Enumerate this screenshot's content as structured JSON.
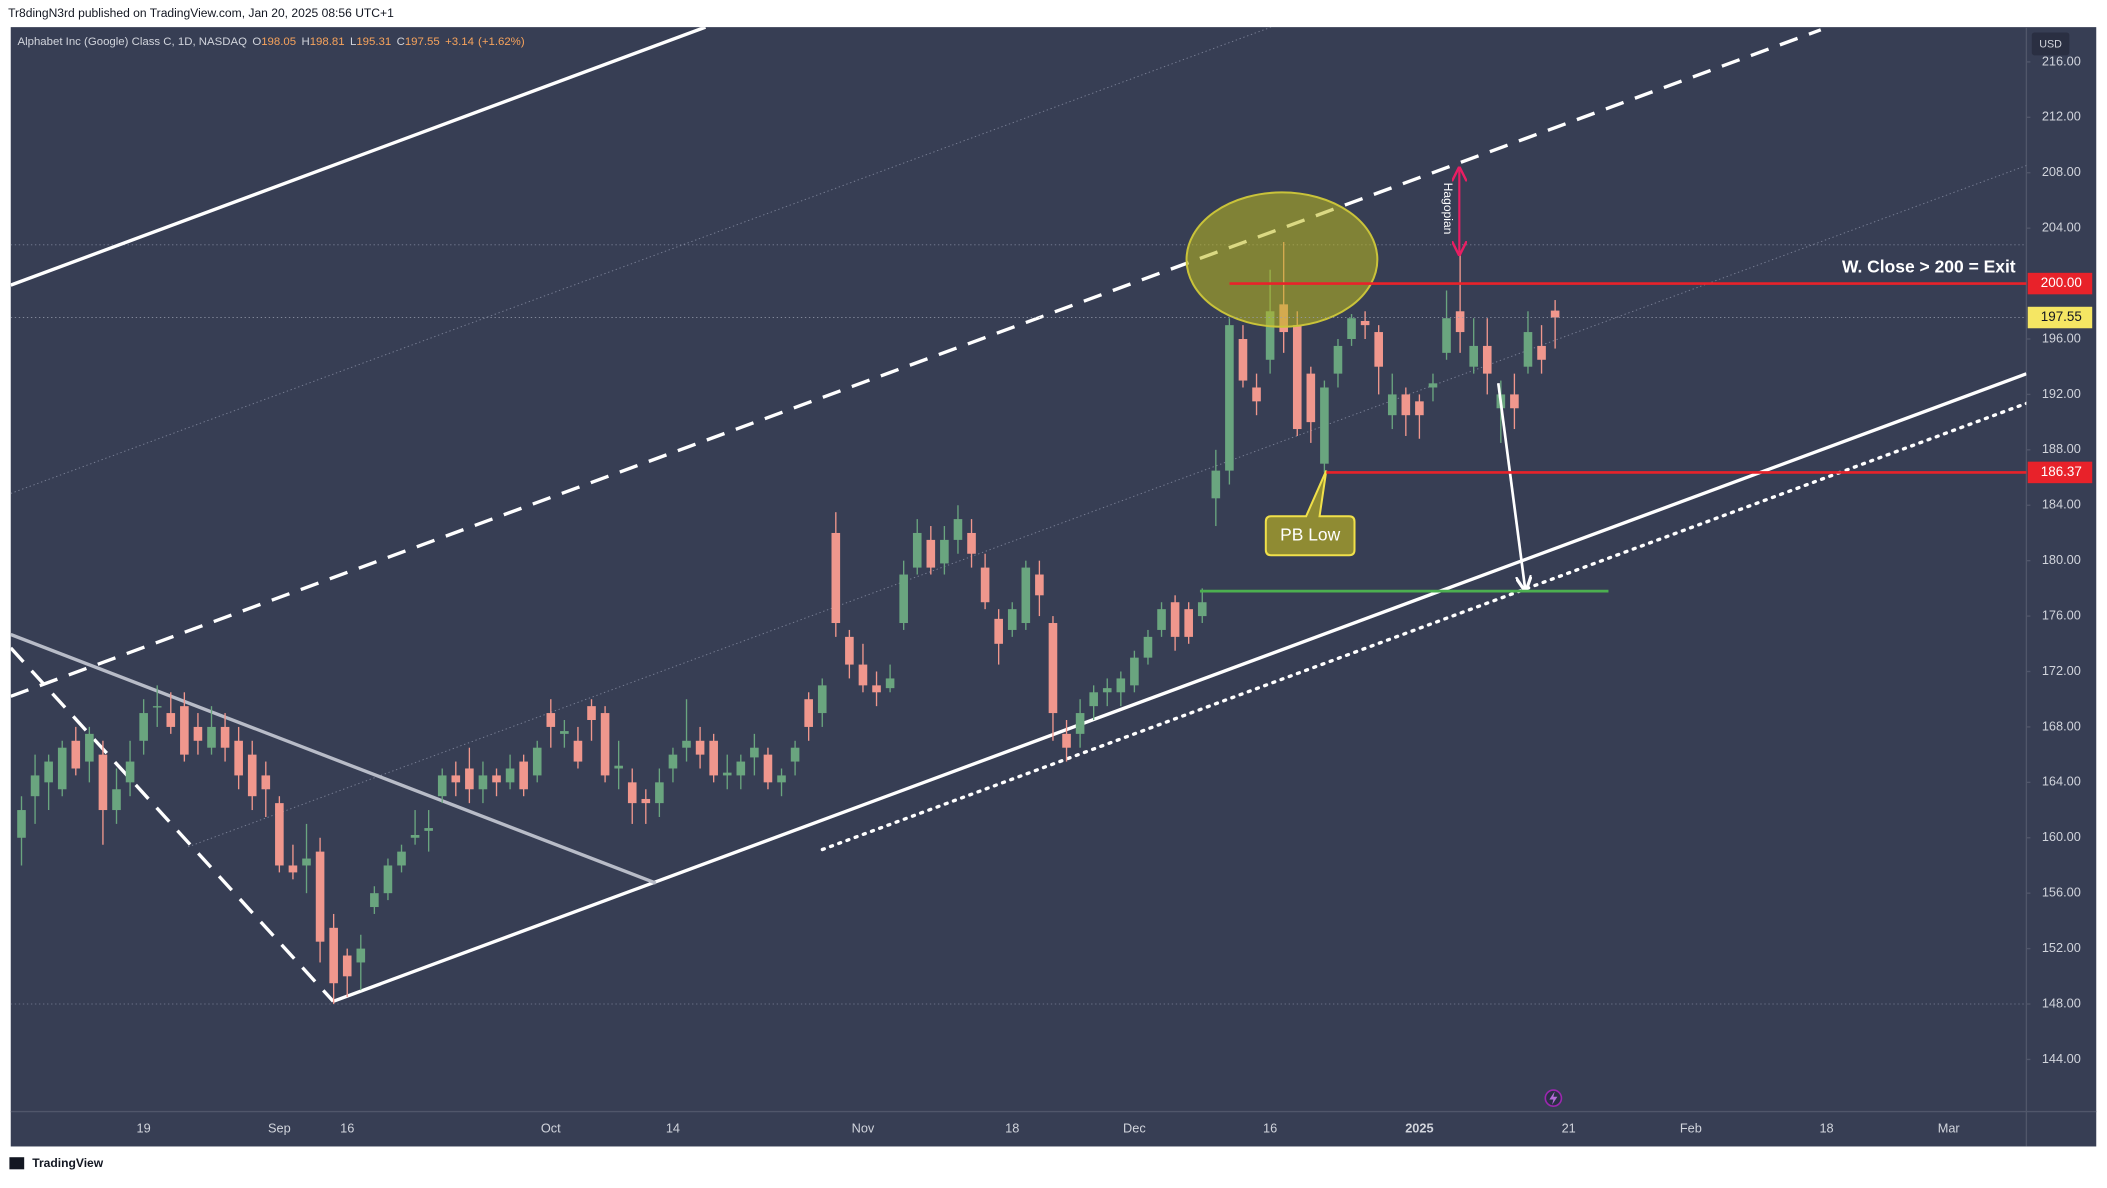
{
  "header": {
    "publisher": "Tr8dingN3rd published on TradingView.com, Jan 20, 2025 08:56 UTC+1"
  },
  "chart_data": {
    "type": "candlestick",
    "symbol": "Alphabet Inc (Google) Class C, 1D, NASDAQ",
    "legend": [
      {
        "prefix": "O",
        "value": 198.05
      },
      {
        "prefix": "H",
        "value": 198.81
      },
      {
        "prefix": "L",
        "value": 195.31
      },
      {
        "prefix": "C",
        "value": 197.55
      }
    ],
    "change": {
      "value": 3.14,
      "label": "+3.14"
    },
    "change_pct": {
      "value": 1.62,
      "label": "(+1.62%)"
    },
    "currency": "USD",
    "categories": [
      null,
      null,
      null,
      null,
      null,
      null,
      null,
      null,
      null,
      "19",
      null,
      null,
      null,
      null,
      null,
      null,
      null,
      null,
      null,
      "Sep",
      null,
      null,
      null,
      null,
      "16",
      null,
      null,
      null,
      null,
      null,
      null,
      null,
      null,
      null,
      null,
      null,
      null,
      null,
      null,
      "Oct",
      null,
      null,
      null,
      null,
      null,
      null,
      null,
      null,
      "14",
      null,
      null,
      null,
      null,
      null,
      null,
      null,
      null,
      null,
      null,
      null,
      null,
      null,
      "Nov",
      null,
      null,
      null,
      null,
      null,
      null,
      null,
      null,
      null,
      null,
      "18",
      null,
      null,
      null,
      null,
      null,
      null,
      null,
      null,
      "Dec",
      null,
      null,
      null,
      null,
      null,
      null,
      null,
      null,
      null,
      "16",
      null,
      null,
      null,
      null,
      null,
      null,
      null,
      null,
      null,
      null,
      "2025",
      null,
      null,
      null,
      null,
      null,
      null,
      null,
      null,
      null,
      null,
      "21",
      null,
      null,
      null,
      null,
      null,
      null,
      null,
      null,
      "Feb",
      null,
      null,
      null,
      null,
      null,
      null,
      null,
      null,
      null,
      "18",
      null,
      null,
      null,
      null,
      null,
      null,
      null,
      null,
      "Mar",
      null,
      null,
      null,
      null,
      null,
      null
    ],
    "open": [
      160,
      163,
      164,
      163.5,
      167,
      165.5,
      166,
      162,
      164,
      167,
      169.5,
      169,
      169.5,
      168,
      166.5,
      168,
      167,
      166,
      164.5,
      162.5,
      158,
      158,
      159,
      153.5,
      151.5,
      151,
      155,
      156,
      158,
      160,
      160.5,
      163,
      164.5,
      165,
      163.5,
      164.5,
      164,
      165.5,
      164.5,
      169,
      167.5,
      167,
      169.5,
      169,
      165,
      164,
      162.8,
      162.5,
      165,
      166.5,
      167,
      167,
      164.5,
      164.5,
      165.8,
      166,
      164,
      165.5,
      170,
      169,
      182,
      174.5,
      172.5,
      171,
      170.8,
      175.5,
      179.5,
      181.5,
      179.8,
      181.5,
      182,
      179.5,
      175.8,
      175,
      175.5,
      179,
      175.5,
      167.5,
      167.5,
      169.5,
      170.5,
      170.5,
      171,
      173,
      175,
      177,
      176.5,
      176,
      184.5,
      186.5,
      196,
      192.5,
      194.5,
      198.5,
      197,
      193.5,
      187,
      193.5,
      196,
      197.3,
      196.5,
      190.5,
      192,
      191.5,
      192.5,
      195,
      198,
      194,
      195.5,
      191,
      192,
      194,
      195.5,
      198.05,
      null,
      null,
      null,
      null,
      null,
      null,
      null,
      null,
      null,
      null,
      null,
      null,
      null,
      null,
      null,
      null,
      null,
      null,
      null,
      null,
      null,
      null,
      null,
      null,
      null,
      null,
      null,
      null,
      null,
      null,
      null,
      null,
      null,
      null,
      null
    ],
    "high": [
      163,
      166,
      166,
      167,
      168,
      168,
      167,
      165,
      167,
      170,
      171,
      170.5,
      170.5,
      169,
      169.5,
      169,
      168,
      167,
      165.5,
      163,
      159.5,
      161,
      160,
      154.5,
      152,
      153,
      156.5,
      158.5,
      159.5,
      162,
      162,
      165,
      165.5,
      166.5,
      165.5,
      165,
      166,
      166,
      167,
      170,
      168.5,
      168,
      170,
      169.5,
      167,
      165,
      163.5,
      165,
      166.5,
      170,
      168,
      167.5,
      166,
      166,
      167.5,
      166.5,
      165,
      167,
      170.5,
      171.5,
      183.5,
      175,
      174,
      172,
      172.5,
      180,
      183,
      182.5,
      182.5,
      184,
      183,
      180.5,
      176.5,
      177,
      180,
      180,
      176,
      168.5,
      170,
      171,
      171.5,
      172,
      173.5,
      175,
      177,
      177.5,
      177,
      178,
      188,
      197.5,
      197,
      193.5,
      201,
      203,
      198,
      194,
      193,
      196,
      197.8,
      198,
      197,
      193.5,
      192.5,
      192,
      193.5,
      199.5,
      202.2,
      197.5,
      197.5,
      193,
      193.5,
      198,
      197,
      198.81,
      null,
      null,
      null,
      null,
      null,
      null,
      null,
      null,
      null,
      null,
      null,
      null,
      null,
      null,
      null,
      null,
      null,
      null,
      null,
      null,
      null,
      null,
      null,
      null,
      null,
      null,
      null,
      null,
      null,
      null,
      null,
      null,
      null,
      null,
      null
    ],
    "low": [
      158,
      161,
      162,
      163,
      164.5,
      164,
      159.5,
      161,
      163,
      166,
      168,
      167.5,
      165.5,
      166,
      166,
      165.5,
      163.5,
      162,
      161.5,
      157.5,
      157,
      156,
      151,
      148,
      148.5,
      149,
      154.5,
      155.5,
      157.5,
      159.5,
      159,
      162.5,
      163,
      162.5,
      162.5,
      163,
      163.5,
      163,
      164,
      166.5,
      166.5,
      165,
      167,
      164,
      163.5,
      161,
      161,
      161.5,
      164,
      165.5,
      165,
      164,
      163.5,
      163.5,
      164.5,
      163.5,
      163,
      164.5,
      167,
      168,
      174.5,
      171.5,
      170.5,
      169.5,
      170.5,
      175,
      179,
      179,
      179,
      180.5,
      179.5,
      176.5,
      172.5,
      174.5,
      175,
      176,
      167,
      165.5,
      166.5,
      168.5,
      169.5,
      169.5,
      170.5,
      172.5,
      174.5,
      173.5,
      174,
      175.5,
      182.5,
      185.5,
      192.5,
      190.5,
      193.5,
      195,
      189,
      188.5,
      186.37,
      192.5,
      195.5,
      196,
      192,
      189.5,
      189,
      188.8,
      191.5,
      194.5,
      195,
      193.5,
      192,
      188.5,
      189.5,
      193.5,
      193.5,
      195.31,
      null,
      null,
      null,
      null,
      null,
      null,
      null,
      null,
      null,
      null,
      null,
      null,
      null,
      null,
      null,
      null,
      null,
      null,
      null,
      null,
      null,
      null,
      null,
      null,
      null,
      null,
      null,
      null,
      null,
      null,
      null,
      null,
      null,
      null,
      null
    ],
    "close": [
      162,
      164.5,
      165.5,
      166.5,
      165,
      167.5,
      162,
      163.5,
      165.5,
      169,
      169.5,
      168,
      166,
      167,
      168,
      166.5,
      164.5,
      163,
      163.5,
      158,
      157.5,
      158.5,
      152.5,
      149.5,
      150,
      152,
      156,
      158,
      159,
      160.2,
      160.7,
      164.5,
      164,
      163.5,
      164.5,
      164,
      165,
      163.5,
      166.5,
      168,
      167.7,
      165.5,
      168.5,
      164.5,
      165.2,
      162.5,
      162.5,
      164,
      166,
      167,
      166,
      164.5,
      164.7,
      165.5,
      166.5,
      164,
      164.5,
      166.5,
      168,
      171,
      175.5,
      172.5,
      171,
      170.5,
      171.5,
      179,
      182,
      179.5,
      181.5,
      183,
      180.5,
      177,
      174,
      176.5,
      179.5,
      177.5,
      169,
      166.5,
      169,
      170.5,
      170.8,
      171.5,
      173,
      174.5,
      176.5,
      174.5,
      174.5,
      177,
      186.5,
      197,
      193,
      191.5,
      198,
      196.5,
      189.5,
      190,
      192.5,
      195.5,
      197.5,
      197,
      194,
      192,
      190.5,
      190.5,
      192.8,
      197.5,
      196.5,
      195.5,
      193.5,
      192,
      191,
      196.5,
      194.5,
      197.55,
      null,
      null,
      null,
      null,
      null,
      null,
      null,
      null,
      null,
      null,
      null,
      null,
      null,
      null,
      null,
      null,
      null,
      null,
      null,
      null,
      null,
      null,
      null,
      null,
      null,
      null,
      null,
      null,
      null,
      null,
      null,
      null,
      null,
      null,
      null
    ],
    "up_color": "#6aa57f",
    "down_color": "#f0978d",
    "ylim": [
      140.24,
      218.51
    ],
    "yticks": [
      {
        "value": 144,
        "label": "144.00"
      },
      {
        "value": 148,
        "label": "148.00"
      },
      {
        "value": 152,
        "label": "152.00"
      },
      {
        "value": 156,
        "label": "156.00"
      },
      {
        "value": 160,
        "label": "160.00"
      },
      {
        "value": 164,
        "label": "164.00"
      },
      {
        "value": 168,
        "label": "168.00"
      },
      {
        "value": 172,
        "label": "172.00"
      },
      {
        "value": 176,
        "label": "176.00"
      },
      {
        "value": 180,
        "label": "180.00"
      },
      {
        "value": 184,
        "label": "184.00"
      },
      {
        "value": 188,
        "label": "188.00"
      },
      {
        "value": 192,
        "label": "192.00"
      },
      {
        "value": 196,
        "label": "196.00"
      },
      {
        "value": 204,
        "label": "204.00"
      },
      {
        "value": 208,
        "label": "208.00"
      },
      {
        "value": 212,
        "label": "212.00"
      },
      {
        "value": 216,
        "label": "216.00"
      }
    ],
    "grid": false,
    "hlines": [
      {
        "value": 200,
        "label": "200.00",
        "color": "#e8222a"
      },
      {
        "value": 186.37,
        "label": "186.37",
        "color": "#e8222a"
      },
      {
        "value": 177.8,
        "color": "#4caf50"
      }
    ],
    "last_price": {
      "value": 197.55,
      "label": "197.55",
      "color": "#f5e663"
    },
    "annotations": {
      "exit": "W. Close > 200 = Exit",
      "pb_low": "PB Low",
      "hagopian": "Hagopian"
    }
  },
  "footer": {
    "brand": "TradingView"
  }
}
